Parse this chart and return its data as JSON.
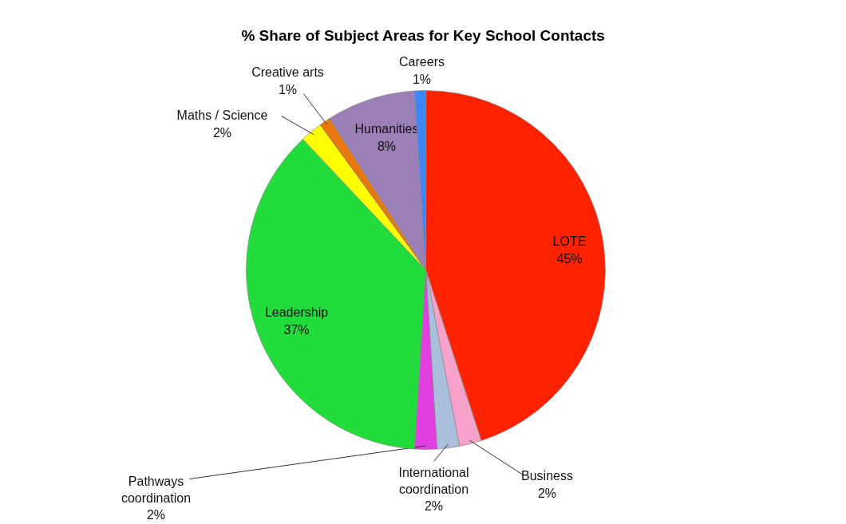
{
  "chart_data": {
    "type": "pie",
    "title": "% Share of Subject Areas for Key School Contacts",
    "categories": [
      "LOTE",
      "Business",
      "International coordination",
      "Pathways coordination",
      "Leadership",
      "Maths / Science",
      "Creative arts",
      "Humanities",
      "Careers"
    ],
    "values": [
      45,
      2,
      2,
      2,
      37,
      2,
      1,
      8,
      1
    ],
    "colors": [
      "#ff2200",
      "#f7a1cb",
      "#a9bfdc",
      "#e23fe0",
      "#22dc3c",
      "#ffff00",
      "#e8780c",
      "#9a80b6",
      "#3a86ff"
    ],
    "value_labels": [
      "45%",
      "2%",
      "2%",
      "2%",
      "37%",
      "2%",
      "1%",
      "8%",
      "1%"
    ]
  }
}
